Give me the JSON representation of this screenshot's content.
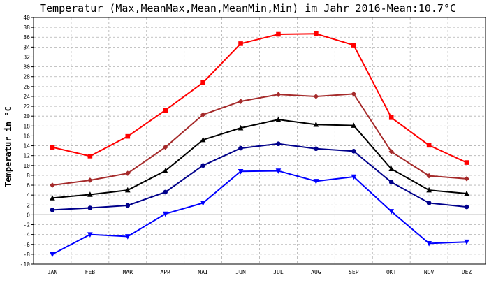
{
  "chart_data": {
    "type": "line",
    "title": "Temperatur (Max,MeanMax,Mean,MeanMin,Min) im Jahr 2016-Mean:10.7°C",
    "xlabel": "",
    "ylabel": "Temperatur in °C",
    "ylim": [
      -10,
      40
    ],
    "ytick_step": 2,
    "grid": true,
    "categories": [
      "JAN",
      "FEB",
      "MAR",
      "APR",
      "MAI",
      "JUN",
      "JUL",
      "AUG",
      "SEP",
      "OKT",
      "NOV",
      "DEZ"
    ],
    "series": [
      {
        "name": "Max",
        "color": "#ff0000",
        "marker": "square",
        "values": [
          13.7,
          11.9,
          15.9,
          21.2,
          26.8,
          34.7,
          36.6,
          36.7,
          34.4,
          19.7,
          14.1,
          10.6
        ]
      },
      {
        "name": "MeanMax",
        "color": "#a52a2a",
        "marker": "diamond",
        "values": [
          6.0,
          7.0,
          8.4,
          13.7,
          20.3,
          23.0,
          24.4,
          24.0,
          24.5,
          12.8,
          7.9,
          7.3
        ]
      },
      {
        "name": "Mean",
        "color": "#000000",
        "marker": "triangle",
        "values": [
          3.4,
          4.1,
          5.0,
          8.9,
          15.2,
          17.6,
          19.3,
          18.3,
          18.1,
          9.3,
          5.0,
          4.3
        ]
      },
      {
        "name": "MeanMin",
        "color": "#00008b",
        "marker": "circle",
        "values": [
          1.0,
          1.4,
          1.9,
          4.6,
          10.0,
          13.5,
          14.4,
          13.4,
          12.9,
          6.6,
          2.4,
          1.6
        ]
      },
      {
        "name": "Min",
        "color": "#0000ff",
        "marker": "triangle-down",
        "values": [
          -8.0,
          -4.0,
          -4.4,
          0.2,
          2.4,
          8.8,
          8.9,
          6.8,
          7.7,
          0.7,
          -5.8,
          -5.5
        ]
      }
    ]
  }
}
